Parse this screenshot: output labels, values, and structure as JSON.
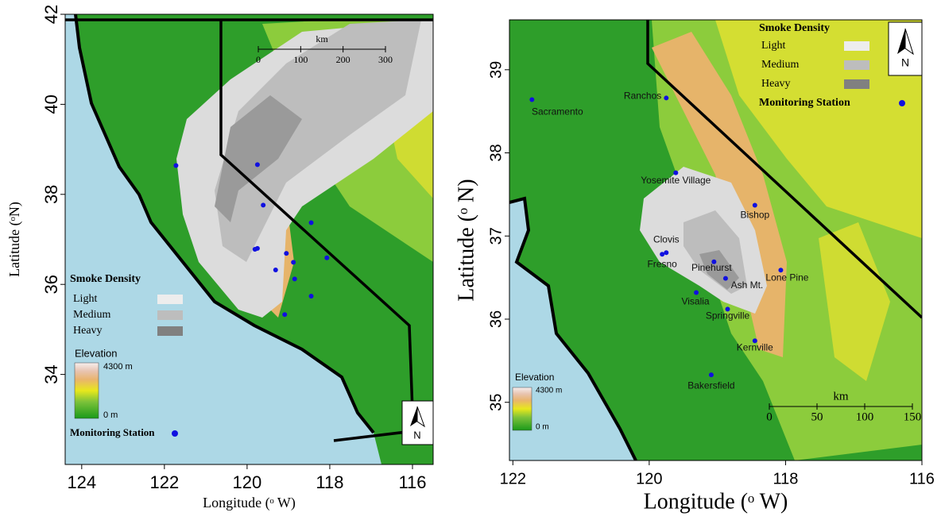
{
  "maps": [
    {
      "xlim": [
        124.4,
        115.5
      ],
      "ylim": [
        32,
        42
      ],
      "xticks": [
        124,
        122,
        120,
        118,
        116
      ],
      "yticks": [
        34,
        36,
        38,
        40,
        42
      ],
      "x_label": "Longitude (ᵒ W)",
      "y_label": "Latitude (ᵒN)",
      "scale_bar": {
        "unit": "km",
        "ticks": [
          0,
          100,
          200,
          300
        ]
      }
    },
    {
      "xlim": [
        122.05,
        116
      ],
      "ylim": [
        34.3,
        39.6
      ],
      "xticks": [
        122,
        120,
        118,
        116
      ],
      "yticks": [
        35,
        36,
        37,
        38,
        39
      ],
      "x_label": "Longitude (ᵒ W)",
      "y_label": "Latitude (ᵒ N)",
      "scale_bar": {
        "unit": "km",
        "ticks": [
          0,
          50,
          100,
          150
        ]
      }
    }
  ],
  "stations": [
    {
      "name": "Sacramento",
      "lon": 121.72,
      "lat": 38.64
    },
    {
      "name": "Ranchos",
      "lon": 119.75,
      "lat": 38.66
    },
    {
      "name": "Yosemite Village",
      "lon": 119.61,
      "lat": 37.76
    },
    {
      "name": "Bishop",
      "lon": 118.45,
      "lat": 37.37
    },
    {
      "name": "Clovis",
      "lon": 119.75,
      "lat": 36.8
    },
    {
      "name": "Fresno",
      "lon": 119.81,
      "lat": 36.78
    },
    {
      "name": "Pinehurst",
      "lon": 119.05,
      "lat": 36.69
    },
    {
      "name": "Ash Mt.",
      "lon": 118.88,
      "lat": 36.49
    },
    {
      "name": "Lone Pine",
      "lon": 118.07,
      "lat": 36.59
    },
    {
      "name": "Visalia",
      "lon": 119.31,
      "lat": 36.32
    },
    {
      "name": "Springville",
      "lon": 118.85,
      "lat": 36.12
    },
    {
      "name": "Kernville",
      "lon": 118.45,
      "lat": 35.74
    },
    {
      "name": "Bakersfield",
      "lon": 119.09,
      "lat": 35.33
    }
  ],
  "legend": {
    "smoke_title": "Smoke Density",
    "smoke_levels": [
      "Light",
      "Medium",
      "Heavy"
    ],
    "elevation_title": "Elevation",
    "elevation_max": "4300 m",
    "elevation_min": "0 m",
    "station_label": "Monitoring Station",
    "north": "N"
  }
}
